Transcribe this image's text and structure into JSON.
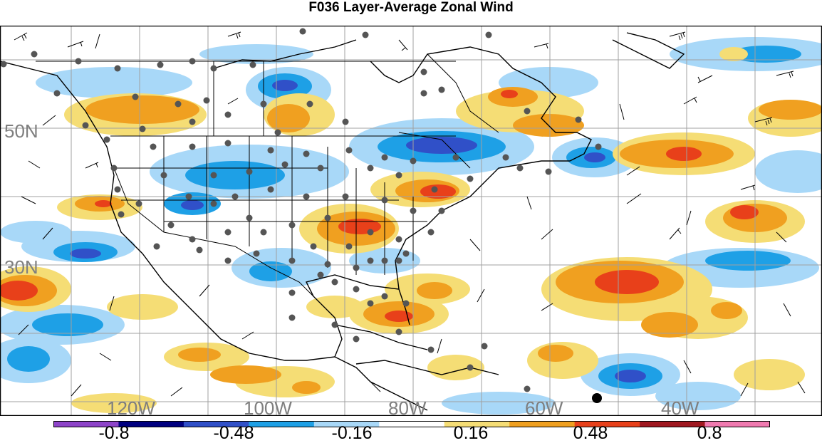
{
  "title": "F036 Layer-Average Zonal Wind",
  "map": {
    "lat_labels": [
      "50N",
      "30N"
    ],
    "lon_labels": [
      "120W",
      "100W",
      "80W",
      "60W",
      "40W"
    ],
    "grid_color": "#a0a0a0",
    "label_color": "#7f7f7f"
  },
  "colorbar": {
    "tick_labels": [
      "-0.8",
      "-0.48",
      "-0.16",
      "0.16",
      "0.48",
      "0.8"
    ],
    "colors": [
      "#8e44c9",
      "#000080",
      "#3050c8",
      "#1ea0e6",
      "#a8d8f8",
      "#ffffff",
      "#f5dd75",
      "#f0a020",
      "#e8401a",
      "#a01820",
      "#f07ab0"
    ]
  }
}
